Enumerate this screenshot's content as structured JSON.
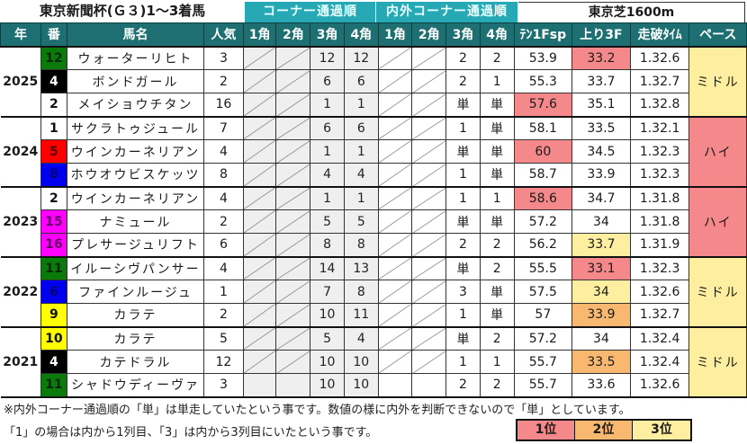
{
  "title": "東京新聞杯(Ｇ３)1～3着馬",
  "course": "東京芝1600m",
  "group_headers": {
    "corner": "コーナー通過順",
    "inout": "内外コーナー通過順"
  },
  "columns": [
    "年",
    "番",
    "馬名",
    "人気",
    "1角",
    "2角",
    "3角",
    "4角",
    "1角",
    "2角",
    "3角",
    "4角",
    "ﾃﾝ1Fsp",
    "上り3F",
    "走破ﾀｲﾑ",
    "ペース"
  ],
  "colors": {
    "header_bg": "#1e6f72",
    "group_header_bg": "#26a9b5",
    "rank1": "#f4888a",
    "rank2": "#f9b870",
    "rank3": "#fdeea0",
    "pace_middle": "#fdeea0",
    "pace_high": "#f4888a"
  },
  "years": [
    {
      "year": "2025",
      "pace": "ミドル",
      "pace_color": "#fdeea0",
      "rows": [
        {
          "num": "12",
          "num_bg": "#0a7a0a",
          "num_fg": "#0a2a0a",
          "name": "ウォーターリヒト",
          "pop": "3",
          "c1": "",
          "c2": "",
          "c3": "12",
          "c4": "12",
          "i1": "",
          "i2": "",
          "i3": "2",
          "i4": "2",
          "ten": "53.9",
          "ten_bg": "",
          "agari": "33.2",
          "agari_bg": "#f4888a",
          "time": "1.32.6",
          "slash": true
        },
        {
          "num": "4",
          "num_bg": "#000000",
          "num_fg": "#ffffff",
          "name": "ボンドガール",
          "pop": "2",
          "c1": "",
          "c2": "",
          "c3": "6",
          "c4": "6",
          "i1": "",
          "i2": "",
          "i3": "2",
          "i4": "1",
          "ten": "55.3",
          "ten_bg": "",
          "agari": "33.7",
          "agari_bg": "",
          "time": "1.32.7",
          "slash": true
        },
        {
          "num": "2",
          "num_bg": "#ffffff",
          "num_fg": "#111111",
          "name": "メイショウチタン",
          "pop": "16",
          "c1": "",
          "c2": "",
          "c3": "1",
          "c4": "1",
          "i1": "",
          "i2": "",
          "i3": "単",
          "i4": "単",
          "ten": "57.6",
          "ten_bg": "#f4888a",
          "agari": "35.1",
          "agari_bg": "",
          "time": "1.32.8",
          "slash": true
        }
      ]
    },
    {
      "year": "2024",
      "pace": "ハイ",
      "pace_color": "#f4888a",
      "rows": [
        {
          "num": "1",
          "num_bg": "#ffffff",
          "num_fg": "#111111",
          "name": "サクラトゥジュール",
          "pop": "7",
          "c1": "",
          "c2": "",
          "c3": "6",
          "c4": "6",
          "i1": "",
          "i2": "",
          "i3": "1",
          "i4": "単",
          "ten": "58.1",
          "ten_bg": "",
          "agari": "33.5",
          "agari_bg": "",
          "time": "1.32.1",
          "slash": true
        },
        {
          "num": "5",
          "num_bg": "#ff0000",
          "num_fg": "#5a0000",
          "name": "ウインカーネリアン",
          "pop": "4",
          "c1": "",
          "c2": "",
          "c3": "1",
          "c4": "1",
          "i1": "",
          "i2": "",
          "i3": "単",
          "i4": "単",
          "ten": "60",
          "ten_bg": "#f4888a",
          "agari": "34.5",
          "agari_bg": "",
          "time": "1.32.3",
          "slash": true
        },
        {
          "num": "8",
          "num_bg": "#0000ee",
          "num_fg": "#00007a",
          "name": "ホウオウビスケッツ",
          "pop": "8",
          "c1": "",
          "c2": "",
          "c3": "4",
          "c4": "4",
          "i1": "",
          "i2": "",
          "i3": "1",
          "i4": "単",
          "ten": "58.7",
          "ten_bg": "",
          "agari": "33.9",
          "agari_bg": "",
          "time": "1.32.3",
          "slash": true
        }
      ]
    },
    {
      "year": "2023",
      "pace": "ハイ",
      "pace_color": "#f4888a",
      "rows": [
        {
          "num": "2",
          "num_bg": "#ffffff",
          "num_fg": "#111111",
          "name": "ウインカーネリアン",
          "pop": "4",
          "c1": "",
          "c2": "",
          "c3": "1",
          "c4": "1",
          "i1": "",
          "i2": "",
          "i3": "1",
          "i4": "1",
          "ten": "58.6",
          "ten_bg": "#f4888a",
          "agari": "34.7",
          "agari_bg": "",
          "time": "1.31.8",
          "slash": true
        },
        {
          "num": "15",
          "num_bg": "#ff00ff",
          "num_fg": "#6a006a",
          "name": "ナミュール",
          "pop": "2",
          "c1": "",
          "c2": "",
          "c3": "5",
          "c4": "5",
          "i1": "",
          "i2": "",
          "i3": "単",
          "i4": "単",
          "ten": "57.2",
          "ten_bg": "",
          "agari": "34",
          "agari_bg": "",
          "time": "1.31.8",
          "slash": true
        },
        {
          "num": "16",
          "num_bg": "#ff00ff",
          "num_fg": "#6a006a",
          "name": "プレサージュリフト",
          "pop": "6",
          "c1": "",
          "c2": "",
          "c3": "8",
          "c4": "8",
          "i1": "",
          "i2": "",
          "i3": "2",
          "i4": "2",
          "ten": "56.2",
          "ten_bg": "",
          "agari": "33.7",
          "agari_bg": "#fdeea0",
          "time": "1.31.9",
          "slash": true
        }
      ]
    },
    {
      "year": "2022",
      "pace": "ミドル",
      "pace_color": "#fdeea0",
      "rows": [
        {
          "num": "11",
          "num_bg": "#0a7a0a",
          "num_fg": "#0a2a0a",
          "name": "イルーシヴパンサー",
          "pop": "4",
          "c1": "",
          "c2": "",
          "c3": "14",
          "c4": "13",
          "i1": "",
          "i2": "",
          "i3": "単",
          "i4": "2",
          "ten": "55.5",
          "ten_bg": "",
          "agari": "33.1",
          "agari_bg": "#f4888a",
          "time": "1.32.3",
          "slash": true
        },
        {
          "num": "6",
          "num_bg": "#0000ee",
          "num_fg": "#00007a",
          "name": "ファインルージュ",
          "pop": "1",
          "c1": "",
          "c2": "",
          "c3": "7",
          "c4": "8",
          "i1": "",
          "i2": "",
          "i3": "3",
          "i4": "単",
          "ten": "57.5",
          "ten_bg": "",
          "agari": "34",
          "agari_bg": "#fdeea0",
          "time": "1.32.6",
          "slash": true
        },
        {
          "num": "9",
          "num_bg": "#ffff00",
          "num_fg": "#111111",
          "name": "カラテ",
          "pop": "2",
          "c1": "",
          "c2": "",
          "c3": "10",
          "c4": "11",
          "i1": "",
          "i2": "",
          "i3": "1",
          "i4": "単",
          "ten": "57",
          "ten_bg": "",
          "agari": "33.9",
          "agari_bg": "#f9b870",
          "time": "1.32.7",
          "slash": true
        }
      ]
    },
    {
      "year": "2021",
      "pace": "ミドル",
      "pace_color": "#fdeea0",
      "rows": [
        {
          "num": "10",
          "num_bg": "#ffff00",
          "num_fg": "#111111",
          "name": "カラテ",
          "pop": "5",
          "c1": "",
          "c2": "",
          "c3": "5",
          "c4": "4",
          "i1": "",
          "i2": "",
          "i3": "単",
          "i4": "2",
          "ten": "57.2",
          "ten_bg": "",
          "agari": "34",
          "agari_bg": "",
          "time": "1.32.4",
          "slash": true
        },
        {
          "num": "4",
          "num_bg": "#000000",
          "num_fg": "#ffffff",
          "name": "カテドラル",
          "pop": "12",
          "c1": "",
          "c2": "",
          "c3": "10",
          "c4": "10",
          "i1": "",
          "i2": "",
          "i3": "1",
          "i4": "1",
          "ten": "55.7",
          "ten_bg": "",
          "agari": "33.5",
          "agari_bg": "#f9b870",
          "time": "1.32.4",
          "slash": true
        },
        {
          "num": "11",
          "num_bg": "#0a7a0a",
          "num_fg": "#0a2a0a",
          "name": "シャドウディーヴァ",
          "pop": "3",
          "c1": "",
          "c2": "",
          "c3": "10",
          "c4": "10",
          "i1": "",
          "i2": "",
          "i3": "2",
          "i4": "2",
          "ten": "55.7",
          "ten_bg": "",
          "agari": "33.6",
          "agari_bg": "",
          "time": "1.32.6",
          "slash": false
        }
      ]
    }
  ],
  "notes": [
    "※内外コーナー通過順の「単」は単走していたという事です。数値の様に内外を判断できないので「単」としています。",
    "「1」の場合は内から1列目、「3」は内から3列目にいたという事です。"
  ],
  "legend": [
    {
      "label": "1位",
      "color": "#f4888a"
    },
    {
      "label": "2位",
      "color": "#f9b870"
    },
    {
      "label": "3位",
      "color": "#fdeea0"
    }
  ]
}
